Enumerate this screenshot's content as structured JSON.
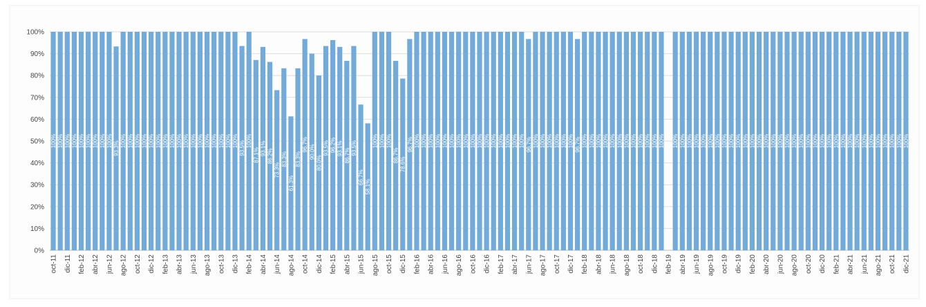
{
  "chart_data": {
    "type": "bar",
    "color": "#72abd9",
    "grid": true,
    "ylim": [
      0,
      100
    ],
    "yticks": [
      {
        "value": 0,
        "label": "0%"
      },
      {
        "value": 10,
        "label": "10%"
      },
      {
        "value": 20,
        "label": "20%"
      },
      {
        "value": 30,
        "label": "30%"
      },
      {
        "value": 40,
        "label": "40%"
      },
      {
        "value": 50,
        "label": "50%"
      },
      {
        "value": 60,
        "label": "60%"
      },
      {
        "value": 70,
        "label": "70%"
      },
      {
        "value": 80,
        "label": "80%"
      },
      {
        "value": 90,
        "label": "90%"
      },
      {
        "value": 100,
        "label": "100%"
      }
    ],
    "categories": [
      "oct-11",
      null,
      "dic-11",
      null,
      "feb-12",
      null,
      "abr-12",
      null,
      "jun-12",
      null,
      "ago-12",
      null,
      "oct-12",
      null,
      "dic-12",
      null,
      "feb-13",
      null,
      "abr-13",
      null,
      "jun-13",
      null,
      "ago-13",
      null,
      "oct-13",
      null,
      "dic-13",
      null,
      "feb-14",
      null,
      "abr-14",
      null,
      "jun-14",
      null,
      "ago-14",
      null,
      "oct-14",
      null,
      "dic-14",
      null,
      "feb-15",
      null,
      "abr-15",
      null,
      "jun-15",
      null,
      "ago-15",
      null,
      "oct-15",
      null,
      "dic-15",
      null,
      "feb-16",
      null,
      "abr-16",
      null,
      "jun-16",
      null,
      "ago-16",
      null,
      "oct-16",
      null,
      "dic-16",
      null,
      "feb-17",
      null,
      "abr-17",
      null,
      "jun-17",
      null,
      "ago-17",
      null,
      "oct-17",
      null,
      "dic-17",
      null,
      "feb-18",
      null,
      "abr-18",
      null,
      "jun-18",
      null,
      "ago-18",
      null,
      "oct-18",
      null,
      "dic-18",
      null,
      "feb-19",
      null,
      "abr-19",
      null,
      "jun-19",
      null,
      "ago-19",
      null,
      "oct-19",
      null,
      "dic-19",
      null,
      "feb-20",
      null,
      "abr-20",
      null,
      "jun-20",
      null,
      "ago-20",
      null,
      "oct-20",
      null,
      "dic-20",
      null,
      "feb-21",
      null,
      "abr-21",
      null,
      "jun-21",
      null,
      "ago-21",
      null,
      "oct-21",
      null,
      "dic-21"
    ],
    "values": [
      100,
      100,
      100,
      100,
      100,
      100,
      100,
      100,
      100,
      93.3,
      100,
      100,
      100,
      100,
      100,
      100,
      100,
      100,
      100,
      100,
      100,
      100,
      100,
      100,
      100,
      100,
      100,
      93.5,
      100,
      87.1,
      93.1,
      86.2,
      73.3,
      83.3,
      61.3,
      83.3,
      96.7,
      90,
      80,
      93.5,
      96.2,
      93.1,
      86.7,
      93.5,
      66.7,
      58.1,
      100,
      100,
      100,
      86.7,
      78.6,
      96.7,
      100,
      100,
      100,
      100,
      100,
      100,
      100,
      100,
      100,
      100,
      100,
      100,
      100,
      100,
      100,
      100,
      96.7,
      100,
      100,
      100,
      100,
      100,
      100,
      96.7,
      100,
      100,
      100,
      100,
      100,
      100,
      100,
      100,
      100,
      100,
      100,
      100,
      null,
      100,
      100,
      100,
      100,
      100,
      100,
      100,
      100,
      100,
      100,
      100,
      100,
      100,
      100,
      100,
      100,
      100,
      100,
      100,
      100,
      100,
      100,
      100,
      100,
      100,
      100,
      100,
      100,
      100,
      100,
      100,
      100,
      100,
      100
    ],
    "value_labels": [
      "100%",
      "100%",
      "100%",
      "100%",
      "100%",
      "100%",
      "100%",
      "100%",
      "100%",
      "93.3%",
      "100%",
      "100%",
      "100%",
      "100%",
      "100%",
      "100%",
      "100%",
      "100%",
      "100%",
      "100%",
      "100%",
      "100%",
      "100%",
      "100%",
      "100%",
      "100%",
      "100%",
      "93.5%",
      "100%",
      "87.1%",
      "93.1%",
      "86.2%",
      "73.3%",
      "83.3%",
      "61.3%",
      "83.3%",
      "96.7%",
      "90.0%",
      "80.0%",
      "93.5%",
      "96.2%",
      "93.1%",
      "86.7%",
      "93.5%",
      "66.7%",
      "58.1%",
      "100%",
      "100%",
      "100%",
      "86.7%",
      "78.6%",
      "96.7%",
      "100%",
      "100%",
      "100%",
      "100%",
      "100%",
      "100%",
      "100%",
      "100%",
      "100%",
      "100%",
      "100%",
      "100%",
      "100%",
      "100%",
      "100%",
      "100%",
      "96.7%",
      "100%",
      "100%",
      "100%",
      "100%",
      "100%",
      "100%",
      "96.7%",
      "100%",
      "100%",
      "100%",
      "100%",
      "100%",
      "100%",
      "100%",
      "100%",
      "100%",
      "100%",
      "100%",
      "100%",
      null,
      "100%",
      "100%",
      "100%",
      "100%",
      "100%",
      "100%",
      "100%",
      "100%",
      "100%",
      "100%",
      "100%",
      "100%",
      "100%",
      "100%",
      "100%",
      "100%",
      "100%",
      "100%",
      "100%",
      "100%",
      "100%",
      "100%",
      "100%",
      "100%",
      "100%",
      "100%",
      "100%",
      "100%",
      "100%",
      "100%",
      "100%",
      "100%",
      "100%",
      "100%"
    ]
  }
}
